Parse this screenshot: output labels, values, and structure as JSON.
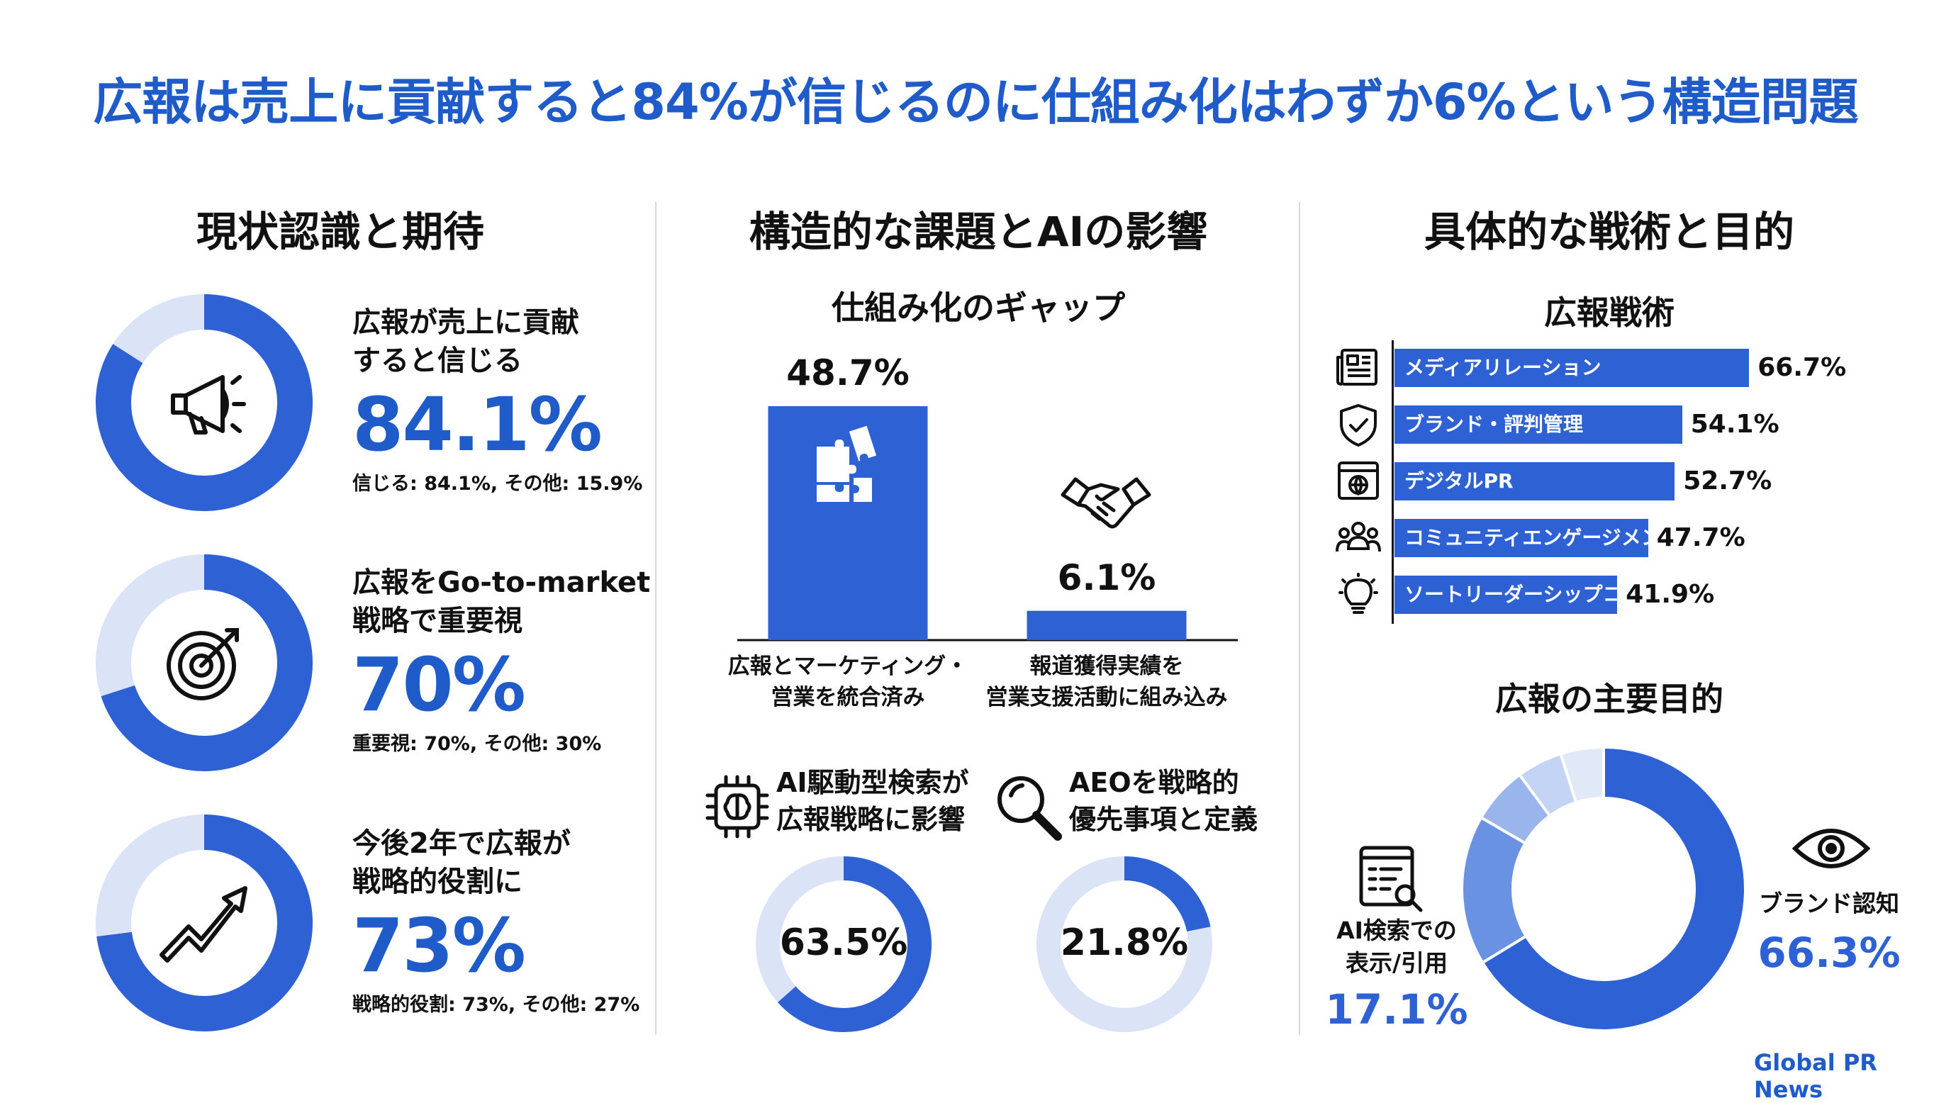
{
  "title": "広報は売上に貢献すると84%が信じるのに仕組み化はわずか6%という構造問題",
  "footer": "Global PR News",
  "colors": {
    "accent": "#2e61d4",
    "light": "#dbe4f6",
    "title": "#1f5bc9"
  },
  "left": {
    "heading": "現状認識と期待",
    "stats": [
      {
        "icon": "megaphone-icon",
        "label_line1": "広報が売上に貢献",
        "label_line2": "すると信じる",
        "value": "84.1%",
        "note": "信じる: 84.1%, その他: 15.9%",
        "pct": 84.1
      },
      {
        "icon": "target-icon",
        "label_line1": "広報をGo-to-market",
        "label_line2": "戦略で重要視",
        "value": "70%",
        "note": "重要視: 70%, その他: 30%",
        "pct": 70
      },
      {
        "icon": "trend-arrow-icon",
        "label_line1": "今後2年で広報が",
        "label_line2": "戦略的役割に",
        "value": "73%",
        "note": "戦略的役割: 73%, その他: 27%",
        "pct": 73
      }
    ]
  },
  "middle": {
    "heading": "構造的な課題とAIの影響",
    "gap_heading": "仕組み化のギャップ",
    "ai": [
      {
        "icon": "ai-chip-icon",
        "label_line1": "AI駆動型検索が",
        "label_line2": "広報戦略に影響",
        "value": "63.5%",
        "pct": 63.5
      },
      {
        "icon": "magnifier-icon",
        "label_line1": "AEOを戦略的",
        "label_line2": "優先事項と定義",
        "value": "21.8%",
        "pct": 21.8
      }
    ]
  },
  "right": {
    "heading": "具体的な戦術と目的",
    "tactics_heading": "広報戦術",
    "tactic_icons": [
      "newspaper-icon",
      "shield-check-icon",
      "web-browser-icon",
      "community-icon",
      "lightbulb-icon"
    ],
    "objectives_heading": "広報の主要目的",
    "brand_label": "ブランド認知",
    "brand_value": "66.3%",
    "ai_search_label_line1": "AI検索での",
    "ai_search_label_line2": "表示/引用",
    "ai_search_value": "17.1%"
  },
  "chart_data": [
    {
      "type": "bar",
      "title": "仕組み化のギャップ",
      "categories": [
        "広報とマーケティング・営業を統合済み",
        "報道獲得実績を営業支援活動に組み込み"
      ],
      "category_lines": [
        [
          "広報とマーケティング・",
          "営業を統合済み"
        ],
        [
          "報道獲得実績を",
          "営業支援活動に組み込み"
        ]
      ],
      "values": [
        48.7,
        6.1
      ],
      "value_labels": [
        "48.7%",
        "6.1%"
      ],
      "ylim": [
        0,
        48.7
      ]
    },
    {
      "type": "bar",
      "orientation": "horizontal",
      "title": "広報戦術",
      "categories": [
        "メディアリレーション",
        "ブランド・評判管理",
        "デジタルPR",
        "コミュニティエンゲージメント",
        "ソートリーダーシップコンテンツ"
      ],
      "values": [
        66.7,
        54.1,
        52.7,
        47.7,
        41.9
      ],
      "value_labels": [
        "66.7%",
        "54.1%",
        "52.7%",
        "47.7%",
        "41.9%"
      ]
    },
    {
      "type": "pie",
      "style": "donut",
      "title": "広報の主要目的",
      "slices": [
        {
          "label": "ブランド認知",
          "value": 66.3,
          "color": "#2e61d4"
        },
        {
          "label": "AI検索での表示/引用",
          "value": 17.1,
          "color": "#6a92e3"
        },
        {
          "label": "",
          "value": 6.5,
          "color": "#9ab5ec"
        },
        {
          "label": "",
          "value": 5.2,
          "color": "#c4d4f4"
        },
        {
          "label": "",
          "value": 4.9,
          "color": "#e1e9f9"
        }
      ]
    },
    {
      "type": "pie",
      "style": "donut",
      "title": "現状認識と期待",
      "series": [
        {
          "values": [
            84.1,
            15.9
          ]
        },
        {
          "values": [
            70,
            30
          ]
        },
        {
          "values": [
            73,
            27
          ]
        }
      ]
    },
    {
      "type": "pie",
      "style": "donut",
      "title": "構造的な課題とAIの影響",
      "series": [
        {
          "values": [
            63.5,
            36.5
          ]
        },
        {
          "values": [
            21.8,
            78.2
          ]
        }
      ]
    }
  ]
}
